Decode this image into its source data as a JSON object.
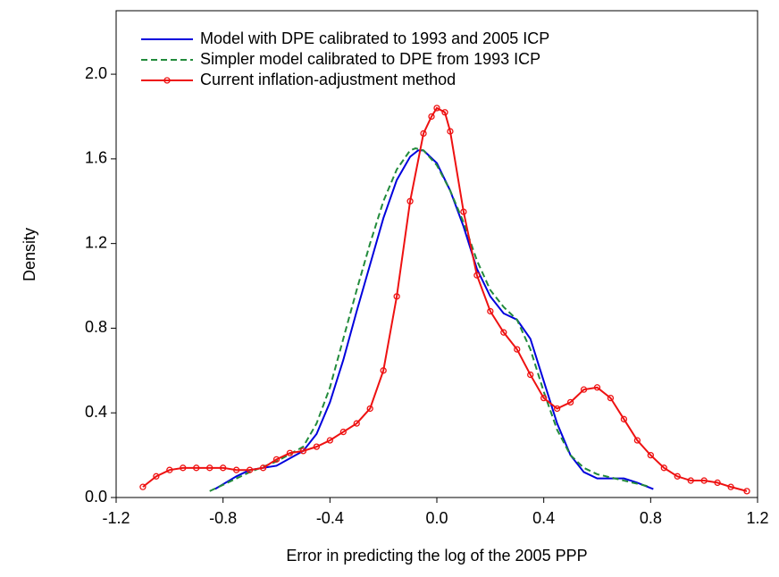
{
  "chart_data": {
    "type": "line",
    "xlabel": "Error in predicting the log of the 2005 PPP",
    "ylabel": "Density",
    "xlim": [
      -1.2,
      1.2
    ],
    "ylim": [
      0,
      2.3
    ],
    "xticks": [
      -1.2,
      -0.8,
      -0.4,
      {
        "value": 0,
        "label": "0.0"
      },
      0.4,
      0.8,
      1.2
    ],
    "yticks": [
      {
        "value": 0,
        "label": "0.0"
      },
      0.4,
      0.8,
      1.2,
      1.6,
      {
        "value": 2,
        "label": "2.0"
      }
    ],
    "legend": "upper left",
    "series": [
      {
        "name": "Model with DPE calibrated to 1993 and 2005 ICP",
        "color": "#0000dd",
        "style": "solid",
        "markers": false,
        "x": [
          -0.83,
          -0.75,
          -0.7,
          -0.6,
          -0.5,
          -0.45,
          -0.4,
          -0.35,
          -0.3,
          -0.25,
          -0.2,
          -0.15,
          -0.1,
          -0.07,
          -0.05,
          0,
          0.05,
          0.1,
          0.15,
          0.2,
          0.25,
          0.3,
          0.35,
          0.4,
          0.45,
          0.5,
          0.55,
          0.6,
          0.65,
          0.7,
          0.75,
          0.81
        ],
        "values": [
          0.04,
          0.1,
          0.13,
          0.15,
          0.22,
          0.3,
          0.45,
          0.65,
          0.88,
          1.1,
          1.32,
          1.5,
          1.61,
          1.64,
          1.64,
          1.58,
          1.45,
          1.28,
          1.08,
          0.95,
          0.87,
          0.84,
          0.75,
          0.55,
          0.35,
          0.2,
          0.12,
          0.09,
          0.09,
          0.09,
          0.07,
          0.04
        ]
      },
      {
        "name": "Simpler model calibrated to DPE from 1993 ICP",
        "color": "#228b3c",
        "style": "dashed",
        "markers": false,
        "x": [
          -0.85,
          -0.75,
          -0.7,
          -0.6,
          -0.5,
          -0.45,
          -0.4,
          -0.35,
          -0.3,
          -0.25,
          -0.2,
          -0.15,
          -0.1,
          -0.08,
          -0.05,
          0,
          0.05,
          0.1,
          0.15,
          0.2,
          0.25,
          0.3,
          0.35,
          0.4,
          0.45,
          0.5,
          0.55,
          0.6,
          0.7,
          0.8
        ],
        "values": [
          0.03,
          0.09,
          0.12,
          0.17,
          0.24,
          0.35,
          0.52,
          0.75,
          0.98,
          1.2,
          1.4,
          1.55,
          1.64,
          1.65,
          1.64,
          1.57,
          1.45,
          1.3,
          1.12,
          0.98,
          0.9,
          0.84,
          0.7,
          0.5,
          0.32,
          0.2,
          0.14,
          0.11,
          0.08,
          0.05
        ]
      },
      {
        "name": "Current inflation-adjustment method",
        "color": "#ee1111",
        "style": "solid",
        "markers": true,
        "x": [
          -1.1,
          -1.05,
          -1.0,
          -0.95,
          -0.9,
          -0.85,
          -0.8,
          -0.75,
          -0.7,
          -0.65,
          -0.6,
          -0.55,
          -0.5,
          -0.45,
          -0.4,
          -0.35,
          -0.3,
          -0.25,
          -0.2,
          -0.15,
          -0.1,
          -0.05,
          -0.02,
          0,
          0.03,
          0.05,
          0.1,
          0.15,
          0.2,
          0.25,
          0.3,
          0.35,
          0.4,
          0.45,
          0.5,
          0.55,
          0.6,
          0.65,
          0.7,
          0.75,
          0.8,
          0.85,
          0.9,
          0.95,
          1.0,
          1.05,
          1.1,
          1.16
        ],
        "values": [
          0.05,
          0.1,
          0.13,
          0.14,
          0.14,
          0.14,
          0.14,
          0.13,
          0.13,
          0.14,
          0.18,
          0.21,
          0.22,
          0.24,
          0.27,
          0.31,
          0.35,
          0.42,
          0.6,
          0.95,
          1.4,
          1.72,
          1.8,
          1.84,
          1.82,
          1.73,
          1.35,
          1.05,
          0.88,
          0.78,
          0.7,
          0.58,
          0.47,
          0.42,
          0.45,
          0.51,
          0.52,
          0.47,
          0.37,
          0.27,
          0.2,
          0.14,
          0.1,
          0.08,
          0.08,
          0.07,
          0.05,
          0.03
        ]
      }
    ]
  }
}
